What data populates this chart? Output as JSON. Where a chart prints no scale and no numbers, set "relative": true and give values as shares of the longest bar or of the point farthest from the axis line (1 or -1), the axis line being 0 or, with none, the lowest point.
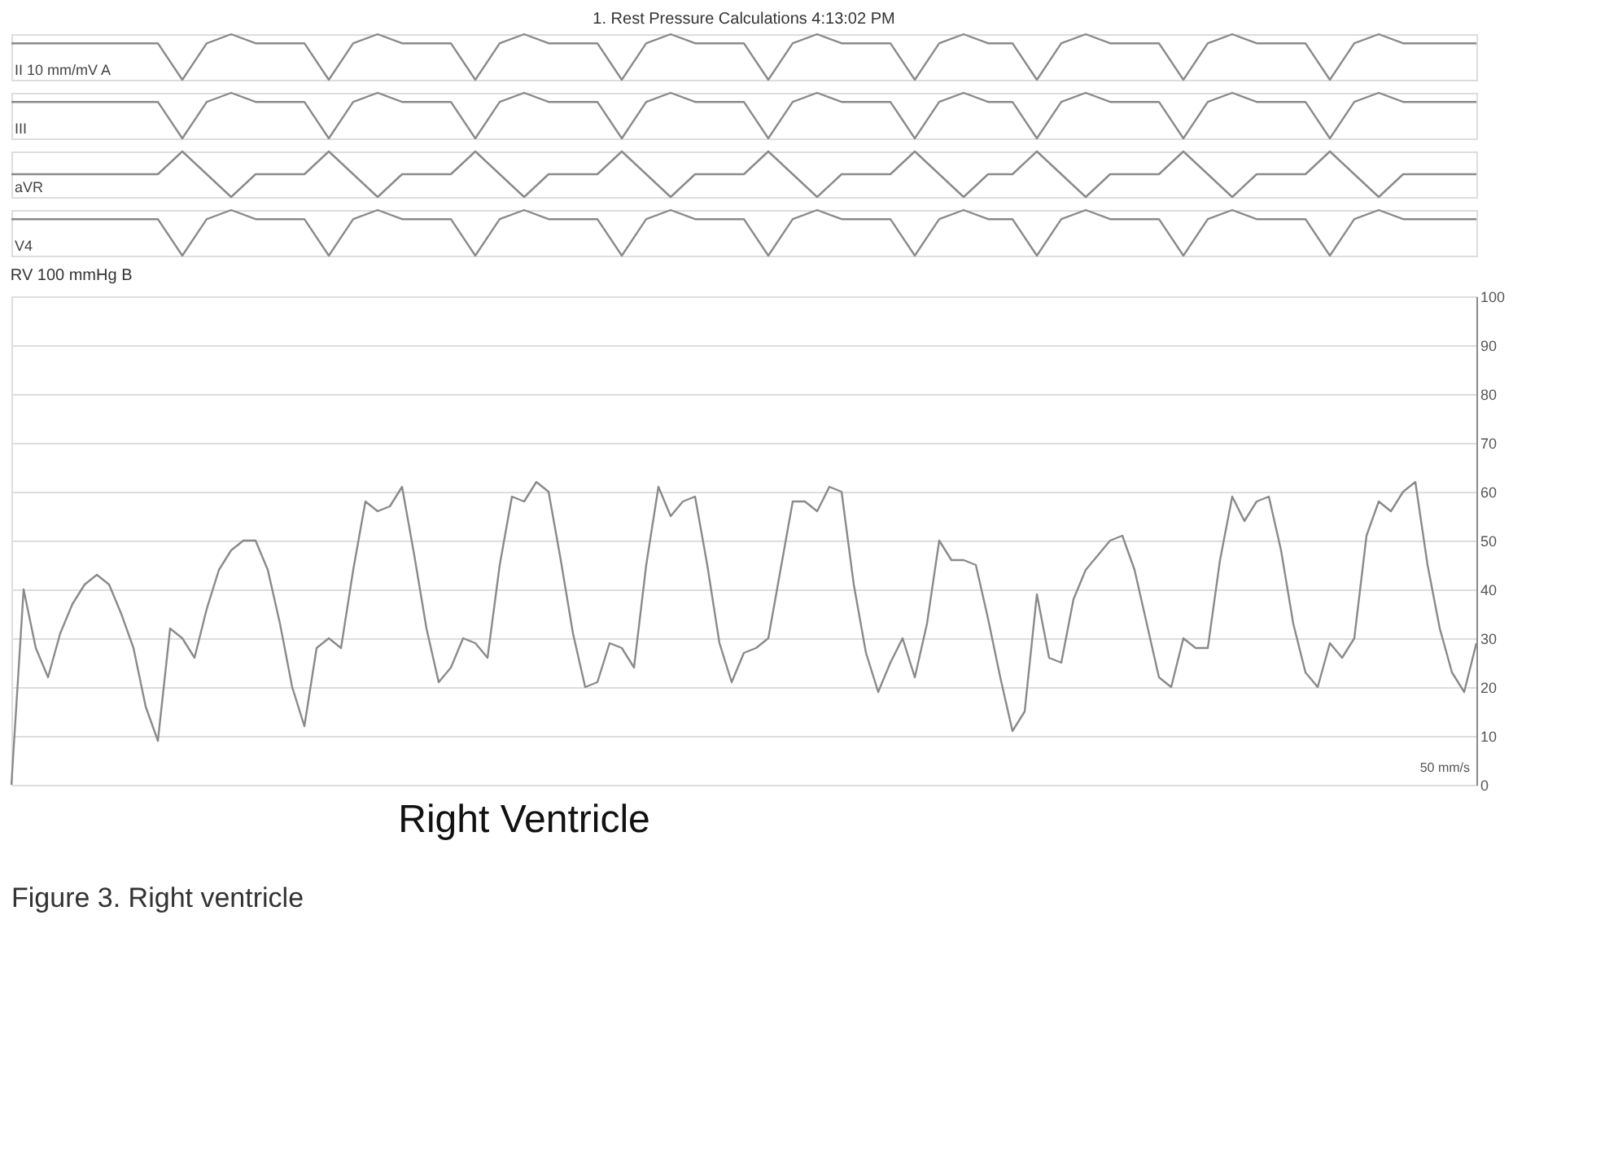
{
  "chart_data": [
    {
      "type": "line",
      "title": "1. Rest Pressure Calculations 4:13:02 PM",
      "ylabel": "II 10 mm/mV A",
      "relative": true,
      "tick_labels": false,
      "categories": [
        null,
        null,
        null,
        null,
        null,
        null,
        null,
        null,
        null,
        null,
        null,
        null,
        null,
        null,
        null,
        null,
        null,
        null,
        null,
        null,
        null,
        null,
        null,
        null,
        null,
        null,
        null,
        null,
        null,
        null,
        null,
        null,
        null,
        null,
        null,
        null,
        null,
        null,
        null,
        null,
        null,
        null,
        null,
        null,
        null,
        null,
        null,
        null,
        null,
        null,
        null,
        null,
        null,
        null,
        null,
        null,
        null,
        null,
        null,
        null,
        null
      ],
      "series": [
        {
          "color": "#8a8a8a",
          "values": [
            0.8,
            0.8,
            0.8,
            0.8,
            0.8,
            0.8,
            0.8,
            0,
            0.8,
            1,
            0.8,
            0.8,
            0.8,
            0,
            0.8,
            1,
            0.8,
            0.8,
            0.8,
            0,
            0.8,
            1,
            0.8,
            0.8,
            0.8,
            0,
            0.8,
            1,
            0.8,
            0.8,
            0.8,
            0,
            0.8,
            1,
            0.8,
            0.8,
            0.8,
            0,
            0.8,
            1,
            0.8,
            0.8,
            0,
            0.8,
            1,
            0.8,
            0.8,
            0.8,
            0,
            0.8,
            1,
            0.8,
            0.8,
            0.8,
            0,
            0.8,
            1,
            0.8,
            0.8,
            0.8,
            0.8
          ]
        }
      ]
    },
    {
      "type": "line",
      "ylabel": "III",
      "relative": true,
      "tick_labels": false,
      "categories": [
        null,
        null,
        null,
        null,
        null,
        null,
        null,
        null,
        null,
        null,
        null,
        null,
        null,
        null,
        null,
        null,
        null,
        null,
        null,
        null,
        null,
        null,
        null,
        null,
        null,
        null,
        null,
        null,
        null,
        null,
        null,
        null,
        null,
        null,
        null,
        null,
        null,
        null,
        null,
        null,
        null,
        null,
        null,
        null,
        null,
        null,
        null,
        null,
        null,
        null,
        null,
        null,
        null,
        null,
        null,
        null,
        null,
        null,
        null,
        null,
        null
      ],
      "series": [
        {
          "color": "#8a8a8a",
          "values": [
            0.8,
            0.8,
            0.8,
            0.8,
            0.8,
            0.8,
            0.8,
            0,
            0.8,
            1,
            0.8,
            0.8,
            0.8,
            0,
            0.8,
            1,
            0.8,
            0.8,
            0.8,
            0,
            0.8,
            1,
            0.8,
            0.8,
            0.8,
            0,
            0.8,
            1,
            0.8,
            0.8,
            0.8,
            0,
            0.8,
            1,
            0.8,
            0.8,
            0.8,
            0,
            0.8,
            1,
            0.8,
            0.8,
            0,
            0.8,
            1,
            0.8,
            0.8,
            0.8,
            0,
            0.8,
            1,
            0.8,
            0.8,
            0.8,
            0,
            0.8,
            1,
            0.8,
            0.8,
            0.8,
            0.8
          ]
        }
      ]
    },
    {
      "type": "line",
      "ylabel": "aVR",
      "relative": true,
      "tick_labels": false,
      "categories": [
        null,
        null,
        null,
        null,
        null,
        null,
        null,
        null,
        null,
        null,
        null,
        null,
        null,
        null,
        null,
        null,
        null,
        null,
        null,
        null,
        null,
        null,
        null,
        null,
        null,
        null,
        null,
        null,
        null,
        null,
        null,
        null,
        null,
        null,
        null,
        null,
        null,
        null,
        null,
        null,
        null,
        null,
        null,
        null,
        null,
        null,
        null,
        null,
        null,
        null,
        null,
        null,
        null,
        null,
        null,
        null,
        null,
        null,
        null,
        null,
        null
      ],
      "series": [
        {
          "color": "#8a8a8a",
          "values": [
            0.5,
            0.5,
            0.5,
            0.5,
            0.5,
            0.5,
            0.5,
            1,
            0.5,
            0,
            0.5,
            0.5,
            0.5,
            1,
            0.5,
            0,
            0.5,
            0.5,
            0.5,
            1,
            0.5,
            0,
            0.5,
            0.5,
            0.5,
            1,
            0.5,
            0,
            0.5,
            0.5,
            0.5,
            1,
            0.5,
            0,
            0.5,
            0.5,
            0.5,
            1,
            0.5,
            0,
            0.5,
            0.5,
            1,
            0.5,
            0,
            0.5,
            0.5,
            0.5,
            1,
            0.5,
            0,
            0.5,
            0.5,
            0.5,
            1,
            0.5,
            0,
            0.5,
            0.5,
            0.5,
            0.5
          ]
        }
      ]
    },
    {
      "type": "line",
      "ylabel": "V4",
      "relative": true,
      "tick_labels": false,
      "categories": [
        null,
        null,
        null,
        null,
        null,
        null,
        null,
        null,
        null,
        null,
        null,
        null,
        null,
        null,
        null,
        null,
        null,
        null,
        null,
        null,
        null,
        null,
        null,
        null,
        null,
        null,
        null,
        null,
        null,
        null,
        null,
        null,
        null,
        null,
        null,
        null,
        null,
        null,
        null,
        null,
        null,
        null,
        null,
        null,
        null,
        null,
        null,
        null,
        null,
        null,
        null,
        null,
        null,
        null,
        null,
        null,
        null,
        null,
        null,
        null,
        null
      ],
      "series": [
        {
          "color": "#8a8a8a",
          "values": [
            0.8,
            0.8,
            0.8,
            0.8,
            0.8,
            0.8,
            0.8,
            0,
            0.8,
            1,
            0.8,
            0.8,
            0.8,
            0,
            0.8,
            1,
            0.8,
            0.8,
            0.8,
            0,
            0.8,
            1,
            0.8,
            0.8,
            0.8,
            0,
            0.8,
            1,
            0.8,
            0.8,
            0.8,
            0,
            0.8,
            1,
            0.8,
            0.8,
            0.8,
            0,
            0.8,
            1,
            0.8,
            0.8,
            0,
            0.8,
            1,
            0.8,
            0.8,
            0.8,
            0,
            0.8,
            1,
            0.8,
            0.8,
            0.8,
            0,
            0.8,
            1,
            0.8,
            0.8,
            0.8,
            0.8
          ]
        }
      ]
    },
    {
      "type": "line",
      "title": "RV 100 mmHg B",
      "tick_labels": "y",
      "ylim": [
        0,
        100
      ],
      "yticks": [
        0,
        10,
        20,
        30,
        40,
        50,
        60,
        70,
        80,
        90,
        100
      ],
      "grid": "y",
      "annotations": [
        "Right Ventricle",
        "50 mm/s",
        "Figure 3. Right ventricle"
      ],
      "categories": [
        null,
        null,
        null,
        null,
        null,
        null,
        null,
        null,
        null,
        null,
        null,
        null,
        null,
        null,
        null,
        null,
        null,
        null,
        null,
        null,
        null,
        null,
        null,
        null,
        null,
        null,
        null,
        null,
        null,
        null,
        null,
        null,
        null,
        null,
        null,
        null,
        null,
        null,
        null,
        null,
        null,
        null,
        null,
        null,
        null,
        null,
        null,
        null,
        null,
        null,
        null,
        null,
        null,
        null,
        null,
        null,
        null,
        null,
        null,
        null,
        null,
        null,
        null,
        null,
        null,
        null,
        null,
        null,
        null,
        null,
        null,
        null,
        null,
        null,
        null,
        null,
        null,
        null,
        null,
        null,
        null,
        null,
        null,
        null,
        null,
        null,
        null,
        null,
        null,
        null,
        null,
        null,
        null,
        null,
        null,
        null,
        null,
        null,
        null,
        null,
        null,
        null,
        null,
        null,
        null,
        null,
        null,
        null,
        null,
        null,
        null,
        null,
        null,
        null,
        null,
        null,
        null,
        null,
        null,
        null,
        null
      ],
      "series": [
        {
          "color": "#8a8a8a",
          "values": [
            0,
            40,
            28,
            22,
            31,
            37,
            41,
            43,
            41,
            35,
            28,
            16,
            9,
            32,
            30,
            26,
            36,
            44,
            48,
            50,
            50,
            44,
            33,
            20,
            12,
            28,
            30,
            28,
            44,
            58,
            56,
            57,
            61,
            47,
            32,
            21,
            24,
            30,
            29,
            26,
            45,
            59,
            58,
            62,
            60,
            46,
            31,
            20,
            21,
            29,
            28,
            24,
            45,
            61,
            55,
            58,
            59,
            45,
            29,
            21,
            27,
            28,
            30,
            44,
            58,
            58,
            56,
            61,
            60,
            41,
            27,
            19,
            25,
            30,
            22,
            33,
            50,
            46,
            46,
            45,
            34,
            22,
            11,
            15,
            39,
            26,
            25,
            38,
            44,
            47,
            50,
            51,
            44,
            33,
            22,
            20,
            30,
            28,
            28,
            46,
            59,
            54,
            58,
            59,
            48,
            33,
            23,
            20,
            29,
            26,
            30,
            51,
            58,
            56,
            60,
            62,
            45,
            32,
            23,
            19,
            29
          ]
        }
      ]
    }
  ]
}
